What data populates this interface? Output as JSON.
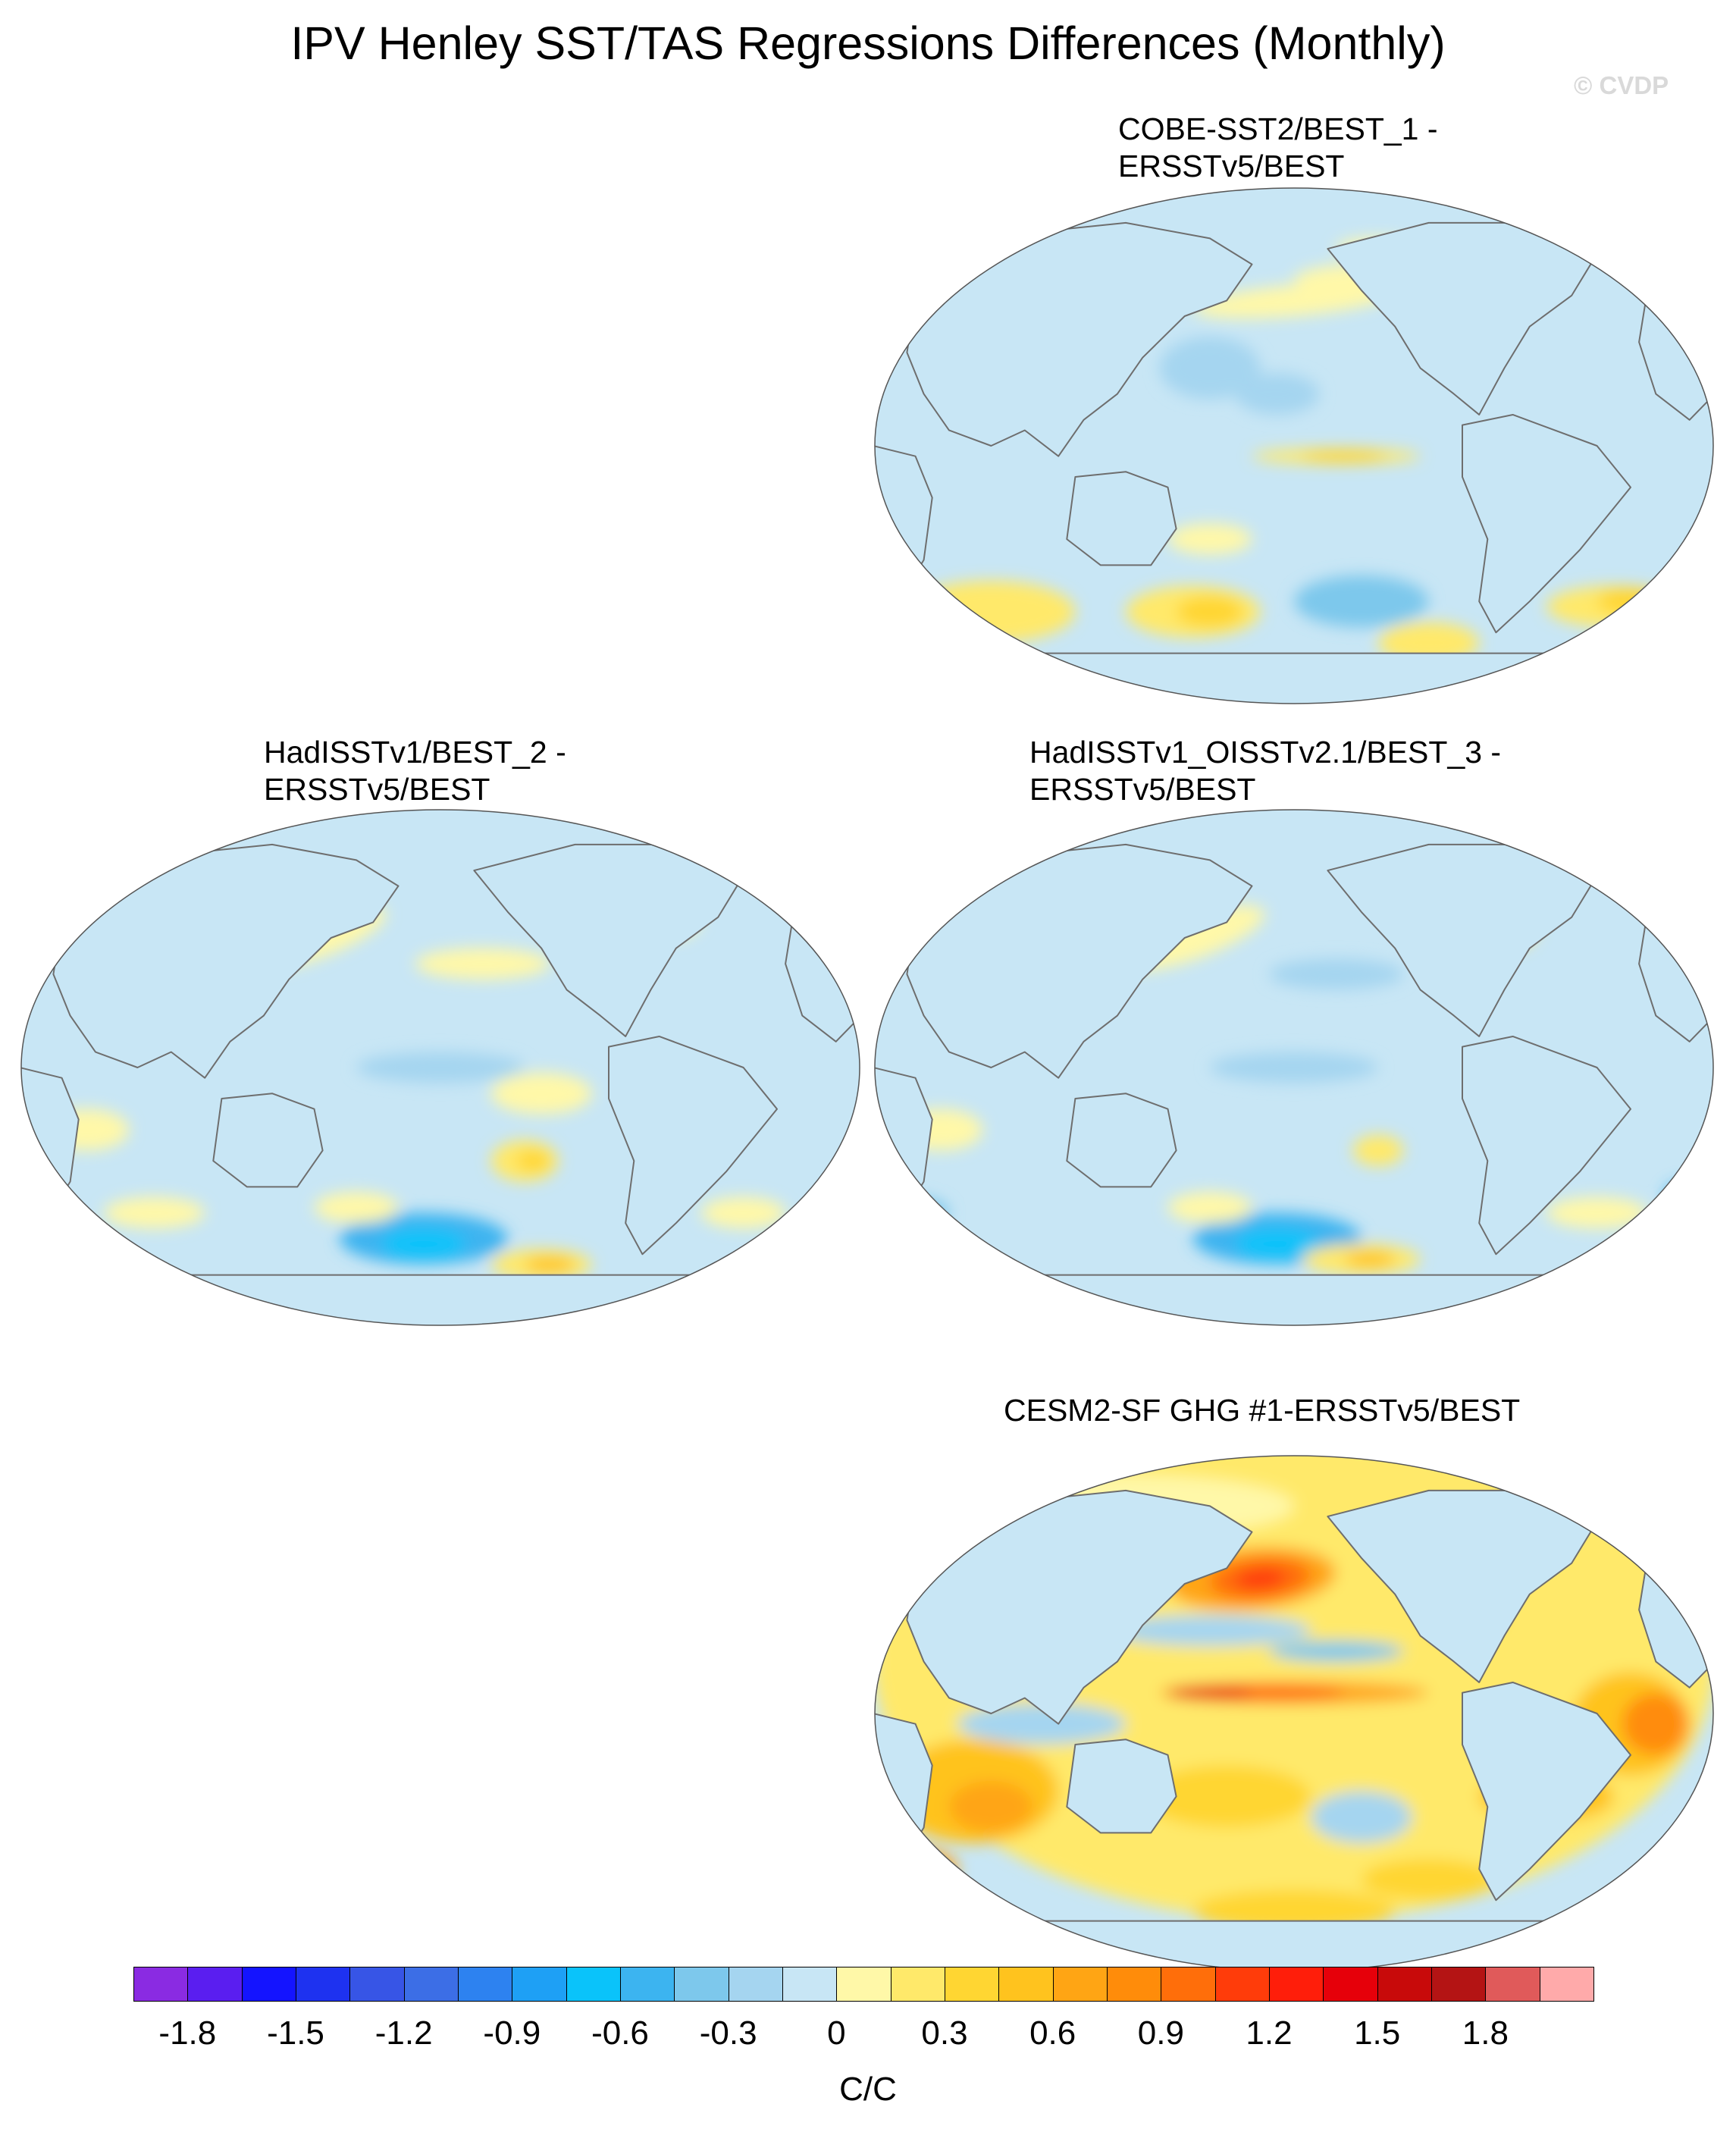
{
  "figure": {
    "title": "IPV Henley SST/TAS Regressions Differences (Monthly)",
    "watermark": "© CVDP"
  },
  "panels": [
    {
      "id": "cobe",
      "title_line1": "COBE-SST2/BEST_1 -",
      "title_line2": "ERSSTv5/BEST",
      "dominant_pattern": "weak cool anomalies with warm bands in Southern Ocean and equatorial Pacific"
    },
    {
      "id": "hadisst",
      "title_line1": "HadISSTv1/BEST_2 -",
      "title_line2": "ERSSTv5/BEST",
      "dominant_pattern": "mixed weak anomalies with cool region in South Pacific"
    },
    {
      "id": "hadisst-oisst",
      "title_line1": "HadISSTv1_OISSTv2.1/BEST_3 -",
      "title_line2": "ERSSTv5/BEST",
      "dominant_pattern": "mixed weak anomalies with cool region in South Pacific"
    },
    {
      "id": "cesm2",
      "title_line1": "CESM2-SF GHG #1-ERSSTv5/BEST",
      "title_line2": "",
      "dominant_pattern": "widespread warm anomalies, strongest in North Pacific and equatorial Pacific"
    }
  ],
  "colorbar": {
    "colors": [
      "#8a2be2",
      "#5a1ef0",
      "#1414ff",
      "#1e32f0",
      "#3755e6",
      "#3c6ee6",
      "#2d82f0",
      "#1ea0f5",
      "#0ac3fa",
      "#3cb4f0",
      "#7dc8ec",
      "#a5d5f0",
      "#c8e6f5",
      "#fff8a8",
      "#ffe96a",
      "#ffd632",
      "#ffc31e",
      "#ffa514",
      "#ff8c0a",
      "#ff6e0a",
      "#ff3c0a",
      "#ff1e0a",
      "#e6000a",
      "#c80a0a",
      "#b41414",
      "#e05a5a",
      "#ffaaaa"
    ],
    "tick_labels": [
      "-1.8",
      "-1.5",
      "-1.2",
      "-0.9",
      "-0.6",
      "-0.3",
      "0",
      "0.3",
      "0.6",
      "0.9",
      "1.2",
      "1.5",
      "1.8"
    ],
    "unit_label": "C/C"
  },
  "colors": {
    "land": "#c8e6f5",
    "coast": "#6e6e6e"
  }
}
